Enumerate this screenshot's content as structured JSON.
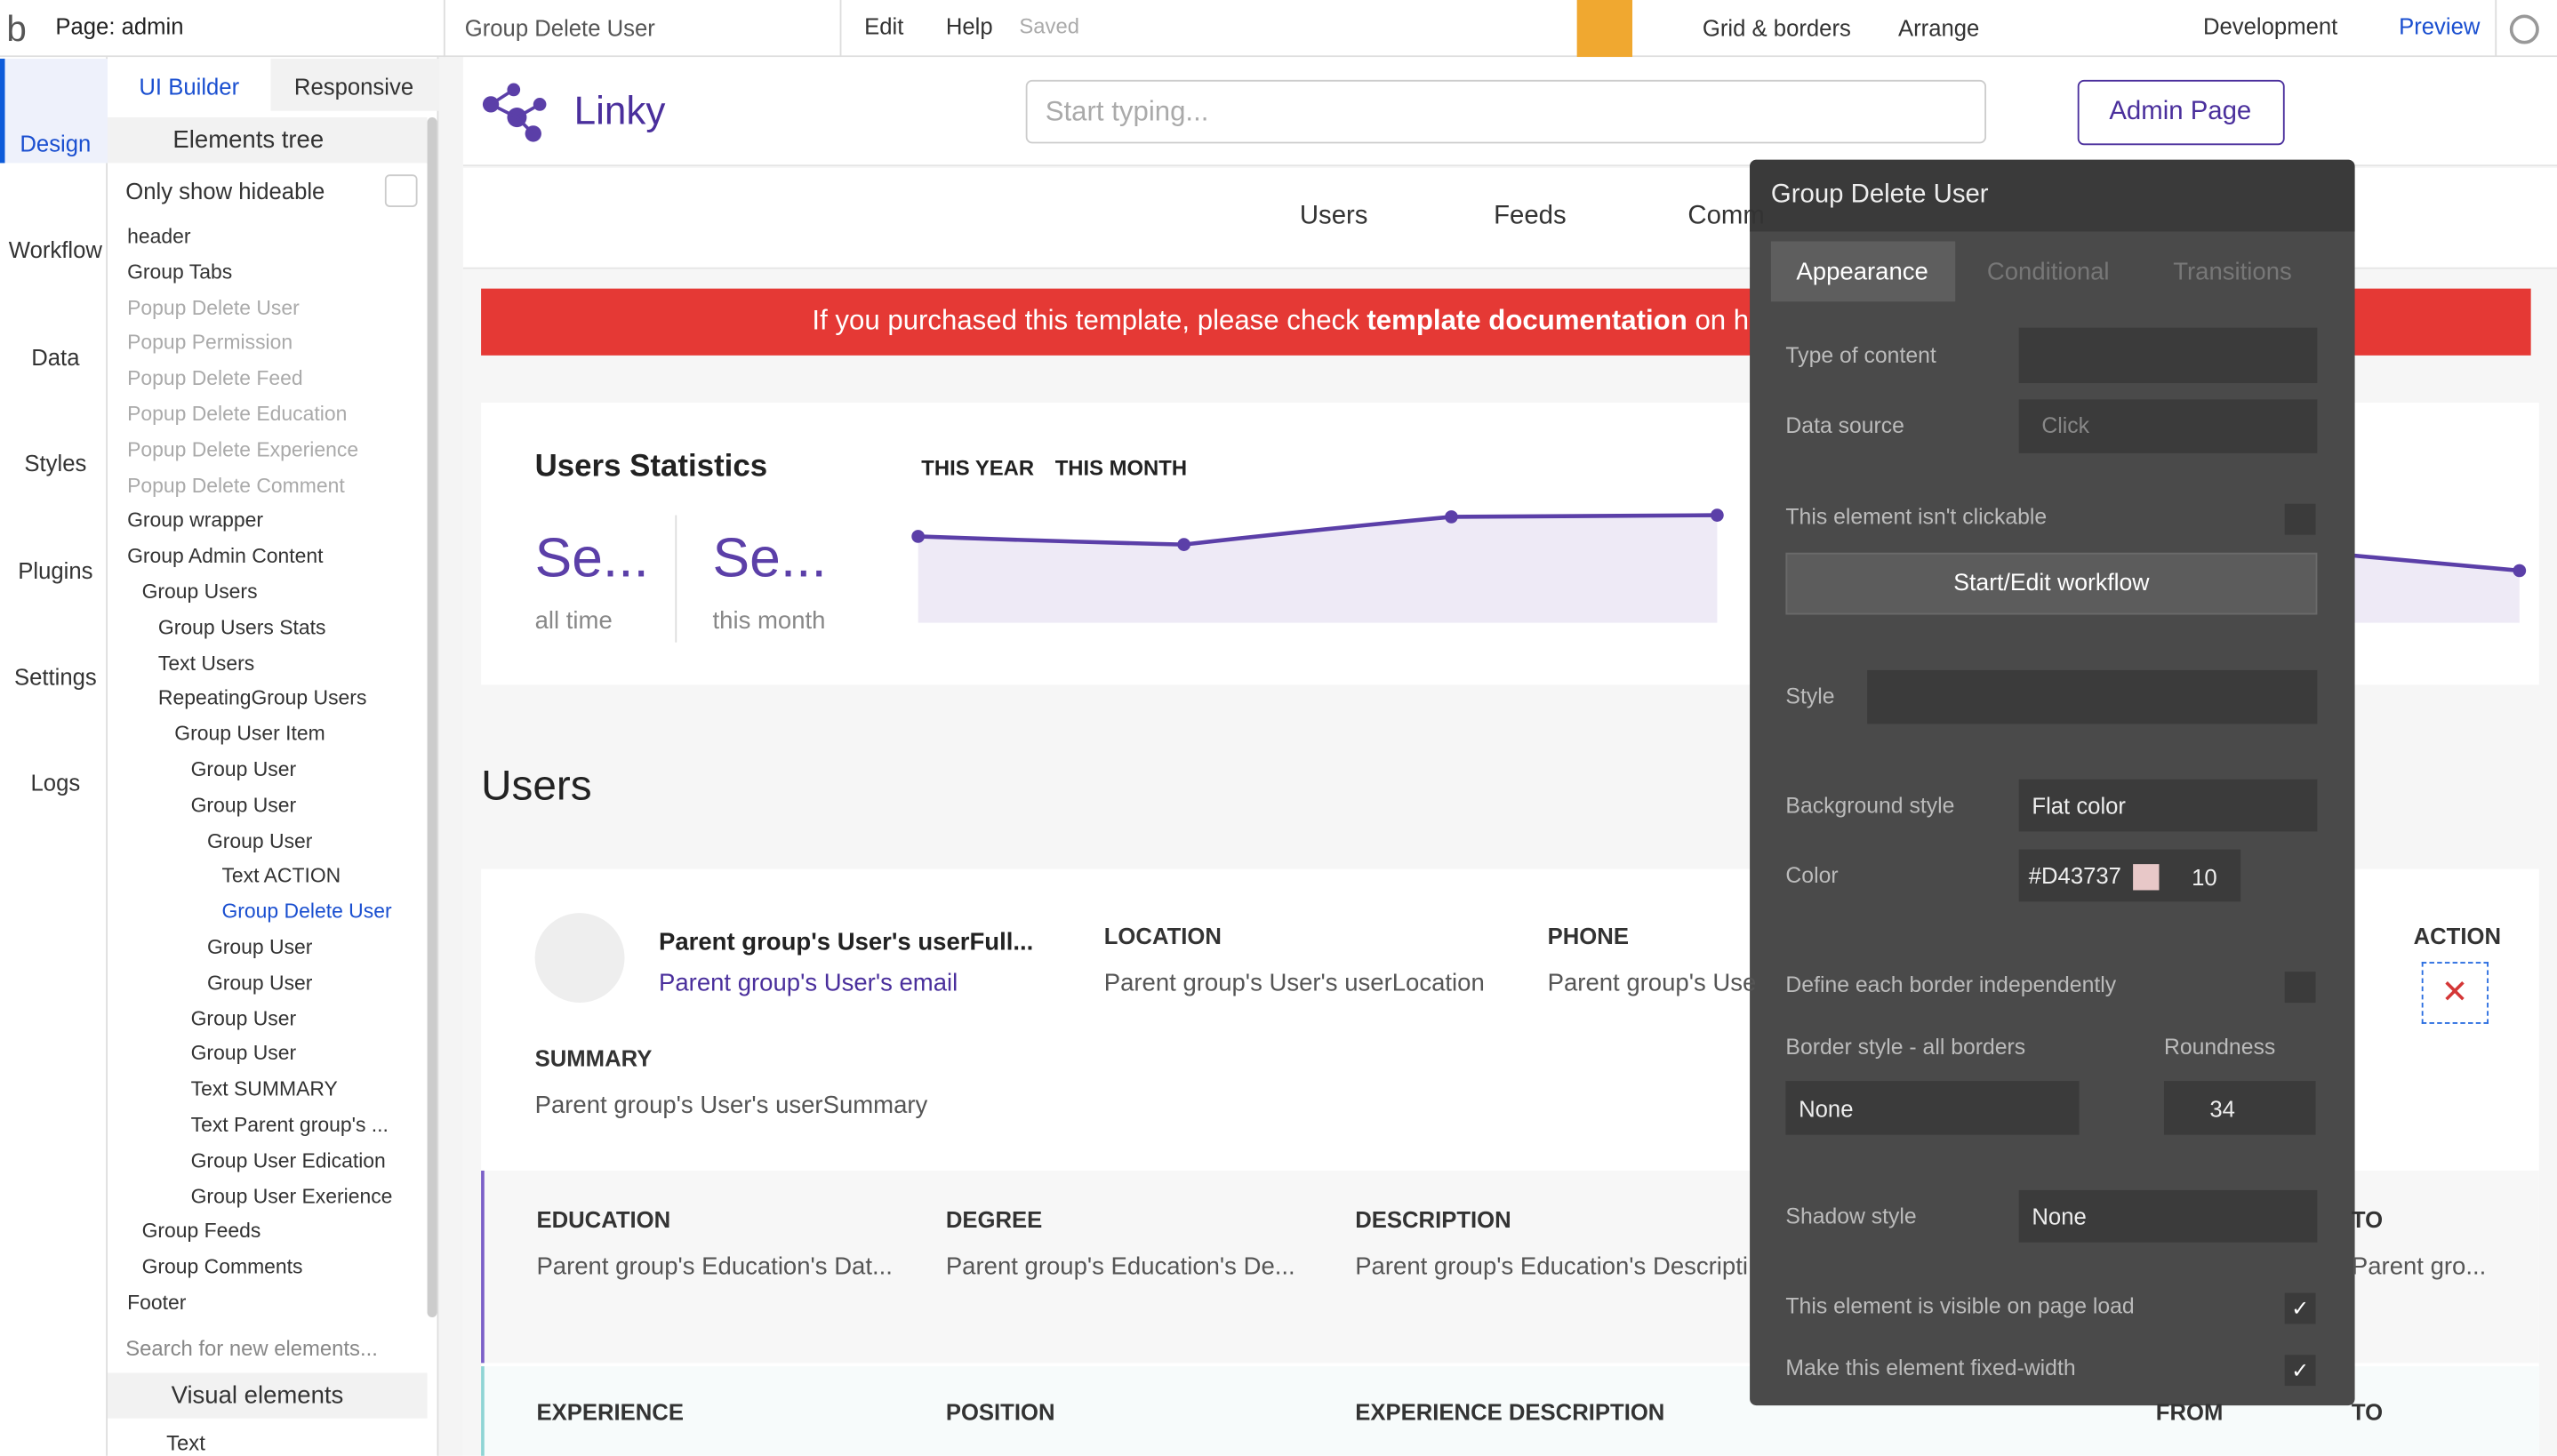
{
  "topbar": {
    "page": "Page: admin",
    "element": "Group Delete User",
    "menu": [
      "Edit",
      "Help"
    ],
    "saved": "Saved",
    "grid": "Grid & borders",
    "arrange": "Arrange",
    "env": "Development",
    "preview": "Preview"
  },
  "sidebar": [
    "Design",
    "Workflow",
    "Data",
    "Styles",
    "Plugins",
    "Settings",
    "Logs"
  ],
  "panel": {
    "tabs": [
      "UI Builder",
      "Responsive"
    ],
    "tree_title": "Elements tree",
    "only_hideable": "Only show hideable",
    "tree": [
      "header",
      "Group Tabs",
      "Popup Delete User",
      "Popup Permission",
      "Popup Delete Feed",
      "Popup Delete Education",
      "Popup Delete Experience",
      "Popup Delete Comment",
      "Group wrapper",
      "Group Admin Content",
      "Group Users",
      "Group Users Stats",
      "Text Users",
      "RepeatingGroup Users",
      "Group User Item",
      "Group User",
      "Group User",
      "Group User",
      "Text ACTION",
      "Group Delete User",
      "Group User",
      "Group User",
      "Group User",
      "Group User",
      "Text SUMMARY",
      "Text Parent group's ...",
      "Group User Edication",
      "Group User Exerience",
      "Group Feeds",
      "Group Comments",
      "Footer"
    ],
    "search": "Search for new elements...",
    "visual": "Visual elements",
    "text_item": "Text"
  },
  "canvas": {
    "logo": "Linky",
    "search": "Start typing...",
    "admin": "Admin Page",
    "nav": [
      "Users",
      "Feeds",
      "Comm"
    ],
    "banner": {
      "before": "If you purchased this template, please check ",
      "bold": "template documentation",
      "after": " on h"
    },
    "stats": {
      "title": "Users Statistics",
      "tabs": [
        "THIS YEAR",
        "THIS MONTH"
      ],
      "v1": "Se...",
      "l1": "all time",
      "v2": "Se...",
      "l2": "this month"
    },
    "users": "Users",
    "name": "Parent group's User's userFull...",
    "email": "Parent group's User's email",
    "location_h": "LOCATION",
    "location": "Parent group's User's userLocation",
    "phone_h": "PHONE",
    "phone": "Parent group's Use",
    "action_h": "ACTION",
    "summary_h": "SUMMARY",
    "summary": "Parent group's User's userSummary",
    "edu": [
      [
        "EDUCATION",
        "Parent group's Education's Dat..."
      ],
      [
        "DEGREE",
        "Parent group's Education's De..."
      ],
      [
        "DESCRIPTION",
        "Parent group's Education's Descripti"
      ],
      [
        "TO",
        "Parent gro..."
      ]
    ],
    "exp": [
      "EXPERIENCE",
      "POSITION",
      "EXPERIENCE DESCRIPTION",
      "FROM",
      "TO"
    ]
  },
  "editor": {
    "title": "Group Delete User",
    "tabs": [
      "Appearance",
      "Conditional",
      "Transitions"
    ],
    "type_content": "Type of content",
    "data_source": "Data source",
    "data_source_value": "Click",
    "not_clickable": "This element isn't clickable",
    "workflow": "Start/Edit workflow",
    "style": "Style",
    "bg_style": "Background style",
    "bg_value": "Flat color",
    "color": "Color",
    "color_value": "#D43737",
    "opacity": "10",
    "border_indep": "Define each border independently",
    "border_style": "Border style - all borders",
    "roundness": "Roundness",
    "border_value": "None",
    "roundness_value": "34",
    "shadow": "Shadow style",
    "shadow_value": "None",
    "visible": "This element is visible on page load",
    "fixed": "Make this element fixed-width"
  }
}
